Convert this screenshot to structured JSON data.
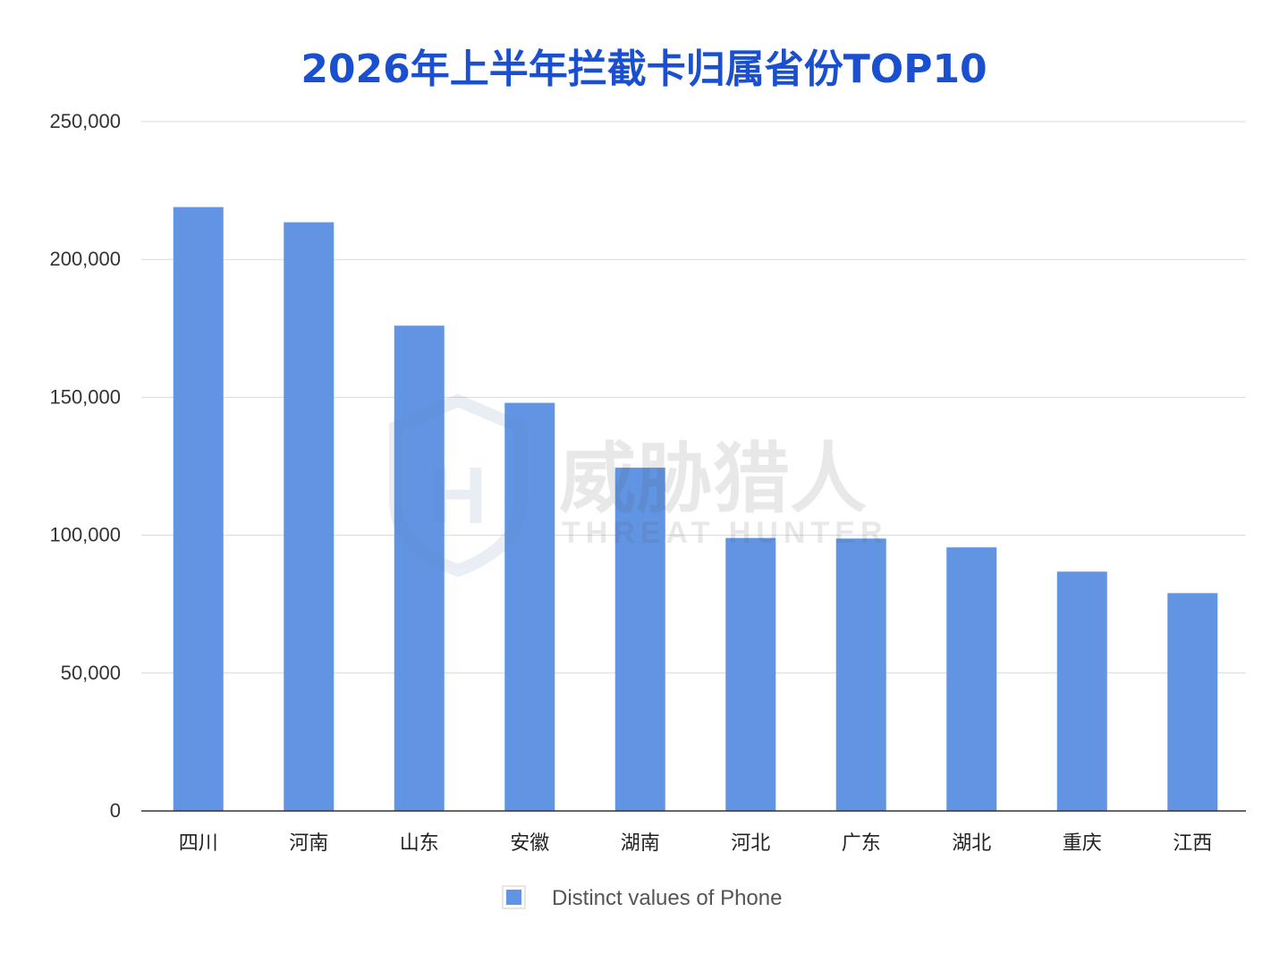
{
  "chart_data": {
    "type": "bar",
    "title": "2026年上半年拦截卡归属省份TOP10",
    "categories": [
      "四川",
      "河南",
      "山东",
      "安徽",
      "湖南",
      "河北",
      "广东",
      "湖北",
      "重庆",
      "江西"
    ],
    "series": [
      {
        "name": "Distinct values of Phone",
        "values": [
          219000,
          213500,
          176000,
          148000,
          124500,
          99000,
          98800,
          95600,
          86800,
          79000
        ]
      }
    ],
    "ylim": [
      0,
      250000
    ],
    "yticks": [
      0,
      50000,
      100000,
      150000,
      200000,
      250000
    ],
    "ytick_labels": [
      "0",
      "50,000",
      "100,000",
      "150,000",
      "200,000",
      "250,000"
    ],
    "grid": true,
    "legend_position": "bottom-center",
    "colors": {
      "bar": "#6195e4",
      "title": "#1a4fd0",
      "grid": "#d9d9d9",
      "axis": "#333333"
    }
  },
  "watermark": {
    "cn": "威胁猎人",
    "en": "THREAT HUNTER",
    "icon": "shield-th-logo-icon"
  }
}
